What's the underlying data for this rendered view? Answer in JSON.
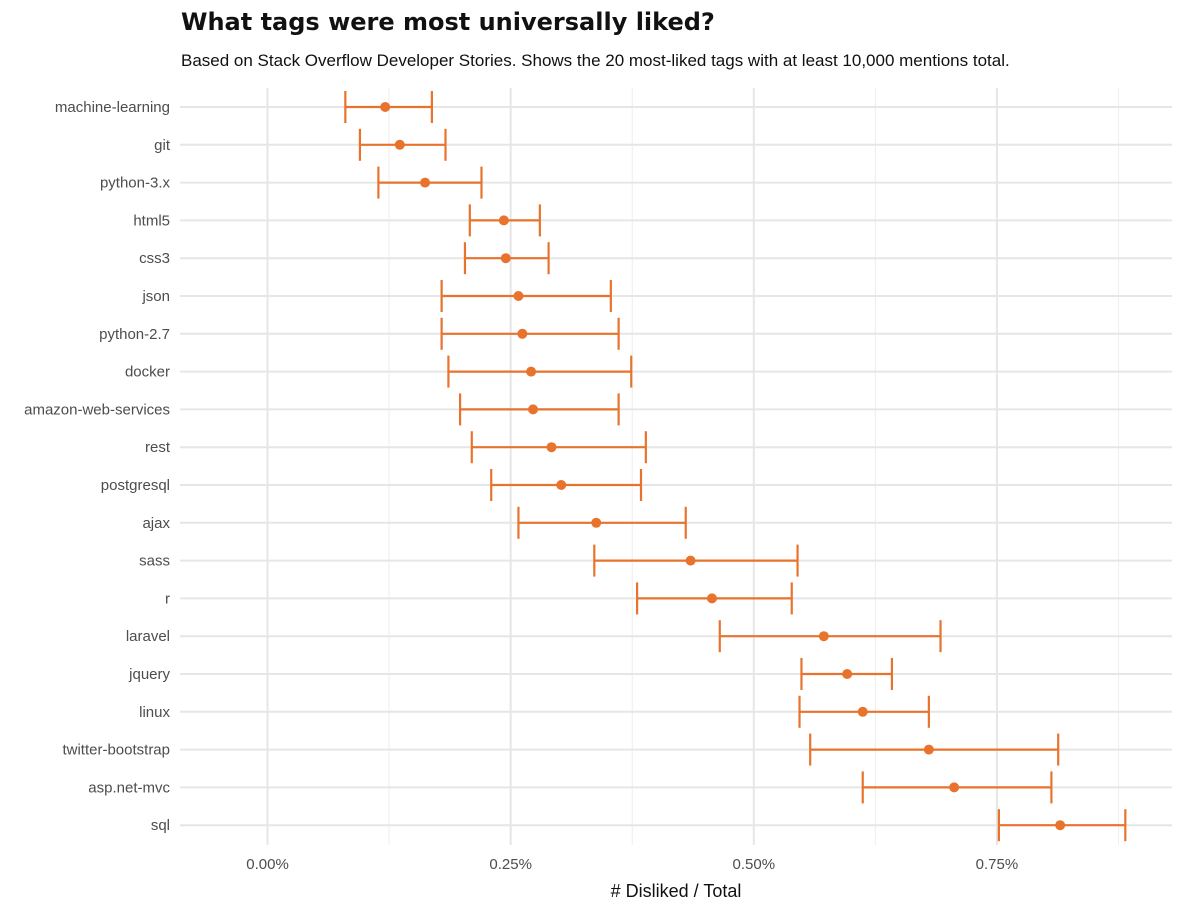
{
  "chart_data": {
    "type": "errorbar",
    "title": "What tags were most universally liked?",
    "subtitle": "Based on Stack Overflow Developer Stories. Shows the 20 most-liked tags with at least 10,000 mentions total.",
    "xlabel": "# Disliked / Total",
    "ylabel": "",
    "xlim": [
      -0.0009,
      0.0093
    ],
    "x_ticks": [
      0,
      0.0025,
      0.005,
      0.0075
    ],
    "x_tick_labels": [
      "0.00%",
      "0.25%",
      "0.50%",
      "0.75%"
    ],
    "grid": true,
    "color": "#e8732c",
    "categories": [
      "machine-learning",
      "git",
      "python-3.x",
      "html5",
      "css3",
      "json",
      "python-2.7",
      "docker",
      "amazon-web-services",
      "rest",
      "postgresql",
      "ajax",
      "sass",
      "r",
      "laravel",
      "jquery",
      "linux",
      "twitter-bootstrap",
      "asp.net-mvc",
      "sql"
    ],
    "values": [
      0.00121,
      0.00136,
      0.00162,
      0.00243,
      0.00245,
      0.00258,
      0.00262,
      0.00271,
      0.00273,
      0.00292,
      0.00302,
      0.00338,
      0.00435,
      0.00457,
      0.00572,
      0.00596,
      0.00612,
      0.0068,
      0.00706,
      0.00815
    ],
    "lower": [
      0.0008,
      0.00095,
      0.00114,
      0.00208,
      0.00203,
      0.00179,
      0.00179,
      0.00186,
      0.00198,
      0.0021,
      0.0023,
      0.00258,
      0.00336,
      0.0038,
      0.00465,
      0.00549,
      0.00547,
      0.00558,
      0.00612,
      0.00752
    ],
    "upper": [
      0.00169,
      0.00183,
      0.0022,
      0.0028,
      0.00289,
      0.00353,
      0.00361,
      0.00374,
      0.00361,
      0.00389,
      0.00384,
      0.0043,
      0.00545,
      0.00539,
      0.00692,
      0.00642,
      0.0068,
      0.00813,
      0.00806,
      0.00882
    ]
  }
}
